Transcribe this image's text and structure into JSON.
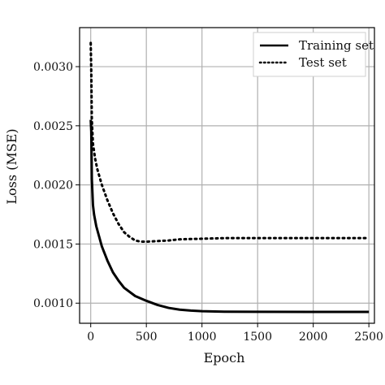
{
  "chart_data": {
    "type": "line",
    "title": "",
    "xlabel": "Epoch",
    "ylabel": "Loss (MSE)",
    "xlim": [
      -100,
      2550
    ],
    "ylim": [
      0.00083,
      0.00333
    ],
    "xticks": [
      0,
      500,
      1000,
      1500,
      2000,
      2500
    ],
    "yticks": [
      0.001,
      0.0015,
      0.002,
      0.0025,
      0.003
    ],
    "xtick_labels": [
      "0",
      "500",
      "1000",
      "1500",
      "2000",
      "2500"
    ],
    "ytick_labels": [
      "0.0010",
      "0.0015",
      "0.0020",
      "0.0025",
      "0.0030"
    ],
    "grid": true,
    "legend_position": "top-right",
    "series": [
      {
        "name": "Training set",
        "style": "solid",
        "color": "#000000",
        "points": [
          [
            0,
            0.00255
          ],
          [
            5,
            0.00245
          ],
          [
            10,
            0.00205
          ],
          [
            20,
            0.00183
          ],
          [
            30,
            0.00175
          ],
          [
            50,
            0.00165
          ],
          [
            100,
            0.00148
          ],
          [
            150,
            0.00136
          ],
          [
            200,
            0.00126
          ],
          [
            250,
            0.00119
          ],
          [
            300,
            0.00113
          ],
          [
            400,
            0.00106
          ],
          [
            500,
            0.00102
          ],
          [
            600,
            0.000985
          ],
          [
            700,
            0.00096
          ],
          [
            800,
            0.000945
          ],
          [
            900,
            0.000937
          ],
          [
            1000,
            0.000932
          ],
          [
            1200,
            0.000928
          ],
          [
            1500,
            0.000927
          ],
          [
            2000,
            0.000926
          ],
          [
            2500,
            0.000926
          ]
        ]
      },
      {
        "name": "Test set",
        "style": "dotted",
        "color": "#000000",
        "points": [
          [
            0,
            0.0032
          ],
          [
            5,
            0.00295
          ],
          [
            10,
            0.00255
          ],
          [
            20,
            0.00235
          ],
          [
            40,
            0.00222
          ],
          [
            60,
            0.00213
          ],
          [
            100,
            0.002
          ],
          [
            150,
            0.00187
          ],
          [
            200,
            0.00176
          ],
          [
            250,
            0.00167
          ],
          [
            300,
            0.0016
          ],
          [
            350,
            0.00156
          ],
          [
            400,
            0.00153
          ],
          [
            450,
            0.00152
          ],
          [
            500,
            0.00152
          ],
          [
            600,
            0.001525
          ],
          [
            700,
            0.00153
          ],
          [
            800,
            0.00154
          ],
          [
            1000,
            0.001545
          ],
          [
            1200,
            0.00155
          ],
          [
            1500,
            0.00155
          ],
          [
            2000,
            0.00155
          ],
          [
            2500,
            0.00155
          ]
        ]
      }
    ]
  }
}
